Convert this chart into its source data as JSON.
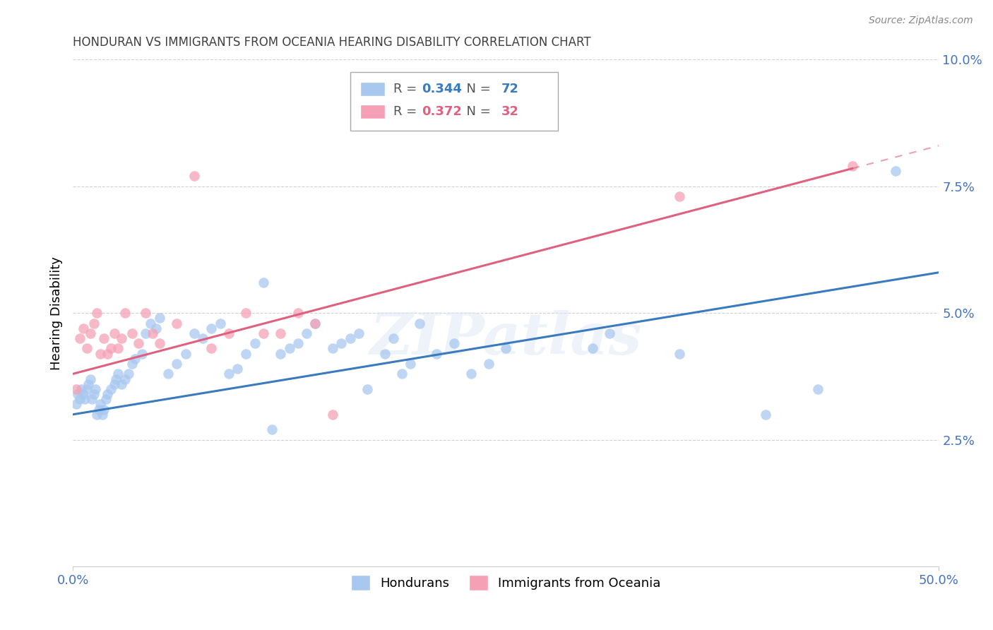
{
  "title": "HONDURAN VS IMMIGRANTS FROM OCEANIA HEARING DISABILITY CORRELATION CHART",
  "source": "Source: ZipAtlas.com",
  "ylabel": "Hearing Disability",
  "xlim": [
    0.0,
    0.5
  ],
  "ylim": [
    0.0,
    0.1
  ],
  "xticks": [
    0.0,
    0.5
  ],
  "xticklabels": [
    "0.0%",
    "50.0%"
  ],
  "yticks": [
    0.0,
    0.025,
    0.05,
    0.075,
    0.1
  ],
  "yticklabels": [
    "",
    "2.5%",
    "5.0%",
    "7.5%",
    "10.0%"
  ],
  "grid_color": "#cccccc",
  "background_color": "#ffffff",
  "series1_color": "#a8c8f0",
  "series2_color": "#f5a0b5",
  "line1_color": "#3a7abf",
  "line2_color": "#e06080",
  "R1": 0.344,
  "N1": 72,
  "R2": 0.372,
  "N2": 32,
  "legend1_label": "Hondurans",
  "legend2_label": "Immigrants from Oceania",
  "axis_label_color": "#4472c4",
  "title_color": "#404040",
  "series1_x": [
    0.002,
    0.003,
    0.004,
    0.005,
    0.006,
    0.007,
    0.008,
    0.009,
    0.01,
    0.011,
    0.012,
    0.013,
    0.014,
    0.015,
    0.016,
    0.017,
    0.018,
    0.019,
    0.02,
    0.022,
    0.024,
    0.025,
    0.026,
    0.028,
    0.03,
    0.032,
    0.034,
    0.036,
    0.04,
    0.042,
    0.045,
    0.048,
    0.05,
    0.055,
    0.06,
    0.065,
    0.07,
    0.075,
    0.08,
    0.085,
    0.09,
    0.095,
    0.1,
    0.105,
    0.11,
    0.115,
    0.12,
    0.125,
    0.13,
    0.135,
    0.14,
    0.15,
    0.155,
    0.16,
    0.165,
    0.17,
    0.18,
    0.185,
    0.19,
    0.195,
    0.2,
    0.21,
    0.22,
    0.23,
    0.24,
    0.25,
    0.3,
    0.31,
    0.35,
    0.4,
    0.43,
    0.475
  ],
  "series1_y": [
    0.032,
    0.034,
    0.033,
    0.035,
    0.034,
    0.033,
    0.035,
    0.036,
    0.037,
    0.033,
    0.034,
    0.035,
    0.03,
    0.031,
    0.032,
    0.03,
    0.031,
    0.033,
    0.034,
    0.035,
    0.036,
    0.037,
    0.038,
    0.036,
    0.037,
    0.038,
    0.04,
    0.041,
    0.042,
    0.046,
    0.048,
    0.047,
    0.049,
    0.038,
    0.04,
    0.042,
    0.046,
    0.045,
    0.047,
    0.048,
    0.038,
    0.039,
    0.042,
    0.044,
    0.056,
    0.027,
    0.042,
    0.043,
    0.044,
    0.046,
    0.048,
    0.043,
    0.044,
    0.045,
    0.046,
    0.035,
    0.042,
    0.045,
    0.038,
    0.04,
    0.048,
    0.042,
    0.044,
    0.038,
    0.04,
    0.043,
    0.043,
    0.046,
    0.042,
    0.03,
    0.035,
    0.078
  ],
  "series2_x": [
    0.002,
    0.004,
    0.006,
    0.008,
    0.01,
    0.012,
    0.014,
    0.016,
    0.018,
    0.02,
    0.022,
    0.024,
    0.026,
    0.028,
    0.03,
    0.034,
    0.038,
    0.042,
    0.046,
    0.05,
    0.06,
    0.07,
    0.08,
    0.09,
    0.1,
    0.11,
    0.12,
    0.13,
    0.14,
    0.15,
    0.35,
    0.45
  ],
  "series2_y": [
    0.035,
    0.045,
    0.047,
    0.043,
    0.046,
    0.048,
    0.05,
    0.042,
    0.045,
    0.042,
    0.043,
    0.046,
    0.043,
    0.045,
    0.05,
    0.046,
    0.044,
    0.05,
    0.046,
    0.044,
    0.048,
    0.077,
    0.043,
    0.046,
    0.05,
    0.046,
    0.046,
    0.05,
    0.048,
    0.03,
    0.073,
    0.079
  ],
  "watermark_text": "ZIPatlas",
  "line1_x_start": 0.0,
  "line1_x_end": 0.5,
  "line1_y_start": 0.03,
  "line1_y_end": 0.058,
  "line2_x_start": 0.0,
  "line2_x_end": 0.5,
  "line2_y_start": 0.038,
  "line2_y_end": 0.083,
  "line2_solid_x_end": 0.45,
  "line2_dash_x_start": 0.45,
  "line2_dash_x_end": 0.5
}
